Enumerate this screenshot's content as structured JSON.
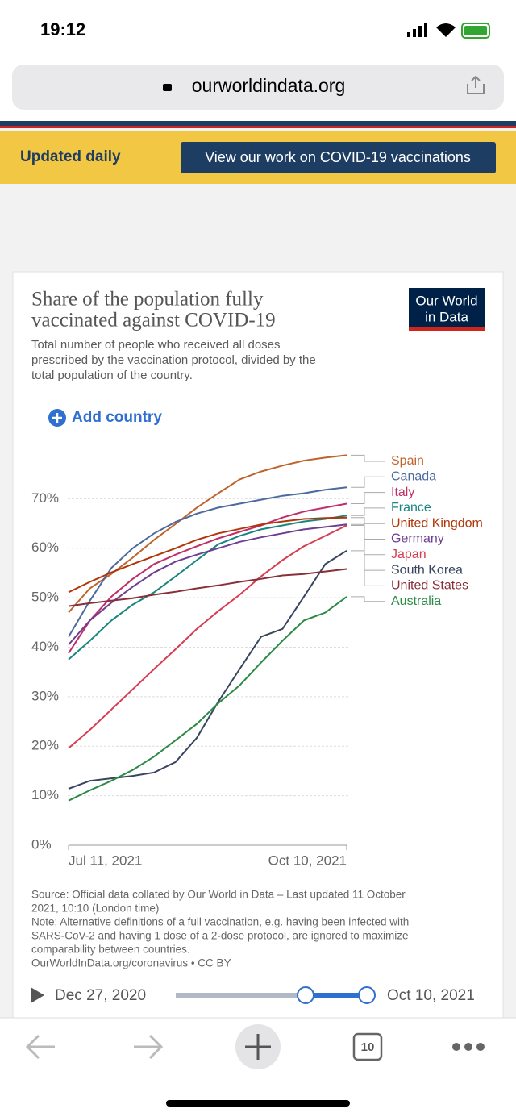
{
  "status_bar": {
    "time": "19:12"
  },
  "browser": {
    "url": "ourworldindata.org",
    "tab_count": "10"
  },
  "banner": {
    "label": "Updated daily",
    "button": "View our work on COVID-19 vaccinations"
  },
  "logo": [
    "Our World",
    "in Data"
  ],
  "add_country": "Add country",
  "chart_data": {
    "type": "line",
    "title": [
      "Share of the population fully",
      "vaccinated against COVID-19"
    ],
    "subtitle": [
      "Total number of people who received all doses",
      "prescribed by the vaccination protocol, divided by the",
      "total population of the country."
    ],
    "x": [
      "2021-07-11",
      "2021-07-18",
      "2021-07-25",
      "2021-08-01",
      "2021-08-08",
      "2021-08-15",
      "2021-08-22",
      "2021-08-29",
      "2021-09-05",
      "2021-09-12",
      "2021-09-19",
      "2021-09-26",
      "2021-10-03",
      "2021-10-10"
    ],
    "xlim": [
      "2021-07-11",
      "2021-10-10"
    ],
    "xticks": [
      {
        "value": "2021-07-11",
        "label": "Jul 11, 2021"
      },
      {
        "value": "2021-10-10",
        "label": "Oct 10, 2021"
      }
    ],
    "ylim": [
      0,
      80
    ],
    "yticks": [
      {
        "value": 0,
        "label": "0%"
      },
      {
        "value": 10,
        "label": "10%"
      },
      {
        "value": 20,
        "label": "20%"
      },
      {
        "value": 30,
        "label": "30%"
      },
      {
        "value": 40,
        "label": "40%"
      },
      {
        "value": 50,
        "label": "50%"
      },
      {
        "value": 60,
        "label": "60%"
      },
      {
        "value": 70,
        "label": "70%"
      }
    ],
    "grid": true,
    "series": [
      {
        "name": "Spain",
        "color": "#c0632b",
        "values": [
          47,
          51.9,
          54.8,
          58.1,
          61.7,
          64.9,
          68.2,
          71.1,
          73.9,
          75.5,
          76.7,
          77.7,
          78.3,
          78.8
        ]
      },
      {
        "name": "Canada",
        "color": "#4c6a9c",
        "values": [
          42.1,
          49.4,
          56,
          60,
          63,
          65.3,
          67,
          68.2,
          69,
          69.8,
          70.6,
          71.1,
          71.8,
          72.3
        ]
      },
      {
        "name": "Italy",
        "color": "#be2e68",
        "values": [
          38.8,
          45.4,
          50.2,
          53.8,
          56.8,
          58.7,
          60.4,
          62,
          63.3,
          64.6,
          66.2,
          67.4,
          68.2,
          69
        ]
      },
      {
        "name": "France",
        "color": "#18857e",
        "values": [
          37.5,
          41.3,
          45.4,
          48.6,
          51.1,
          54.3,
          57.6,
          60.8,
          62.5,
          63.8,
          64.6,
          65.4,
          65.9,
          66.6
        ]
      },
      {
        "name": "United Kingdom",
        "color": "#b13507",
        "values": [
          51.1,
          53.2,
          55.1,
          56.8,
          58.4,
          60,
          61.7,
          63,
          63.9,
          64.8,
          65.4,
          65.9,
          66.1,
          66.2
        ]
      },
      {
        "name": "Germany",
        "color": "#6d3e91",
        "values": [
          40.5,
          45.4,
          49,
          52.2,
          55.1,
          57.3,
          58.7,
          60,
          61.3,
          62.2,
          63,
          63.8,
          64.3,
          64.8
        ]
      },
      {
        "name": "Japan",
        "color": "#d73c50",
        "values": [
          19.6,
          23.3,
          27.4,
          31.5,
          35.6,
          39.6,
          43.7,
          47.3,
          50.6,
          54.3,
          57.6,
          60.4,
          62.5,
          64.6
        ]
      },
      {
        "name": "South Korea",
        "color": "#38455e",
        "values": [
          11.4,
          13,
          13.5,
          14,
          14.7,
          16.8,
          21.7,
          29,
          35.6,
          42.1,
          43.7,
          50.2,
          56.8,
          59.5
        ]
      },
      {
        "name": "United States",
        "color": "#883039",
        "values": [
          48.3,
          48.9,
          49.4,
          49.9,
          50.6,
          51.2,
          51.9,
          52.5,
          53.2,
          53.8,
          54.5,
          54.8,
          55.3,
          55.8
        ]
      },
      {
        "name": "Australia",
        "color": "#2c8a46",
        "values": [
          9,
          11.1,
          13,
          15.2,
          17.9,
          21.2,
          24.5,
          28.7,
          32.3,
          36.9,
          41.3,
          45.4,
          47,
          50.2
        ]
      }
    ],
    "notes": [
      "Source: Official data collated by Our World in Data – Last updated 11 October",
      "2021, 10:10 (London time)",
      "Note: Alternative definitions of a full vaccination, e.g. having been infected with",
      "SARS-CoV-2 and having 1 dose of a 2-dose protocol, are ignored to maximize",
      "comparability between countries.",
      "OurWorldInData.org/coronavirus • CC BY"
    ]
  },
  "timeline": {
    "start": "Dec 27, 2020",
    "end": "Oct 10, 2021"
  }
}
